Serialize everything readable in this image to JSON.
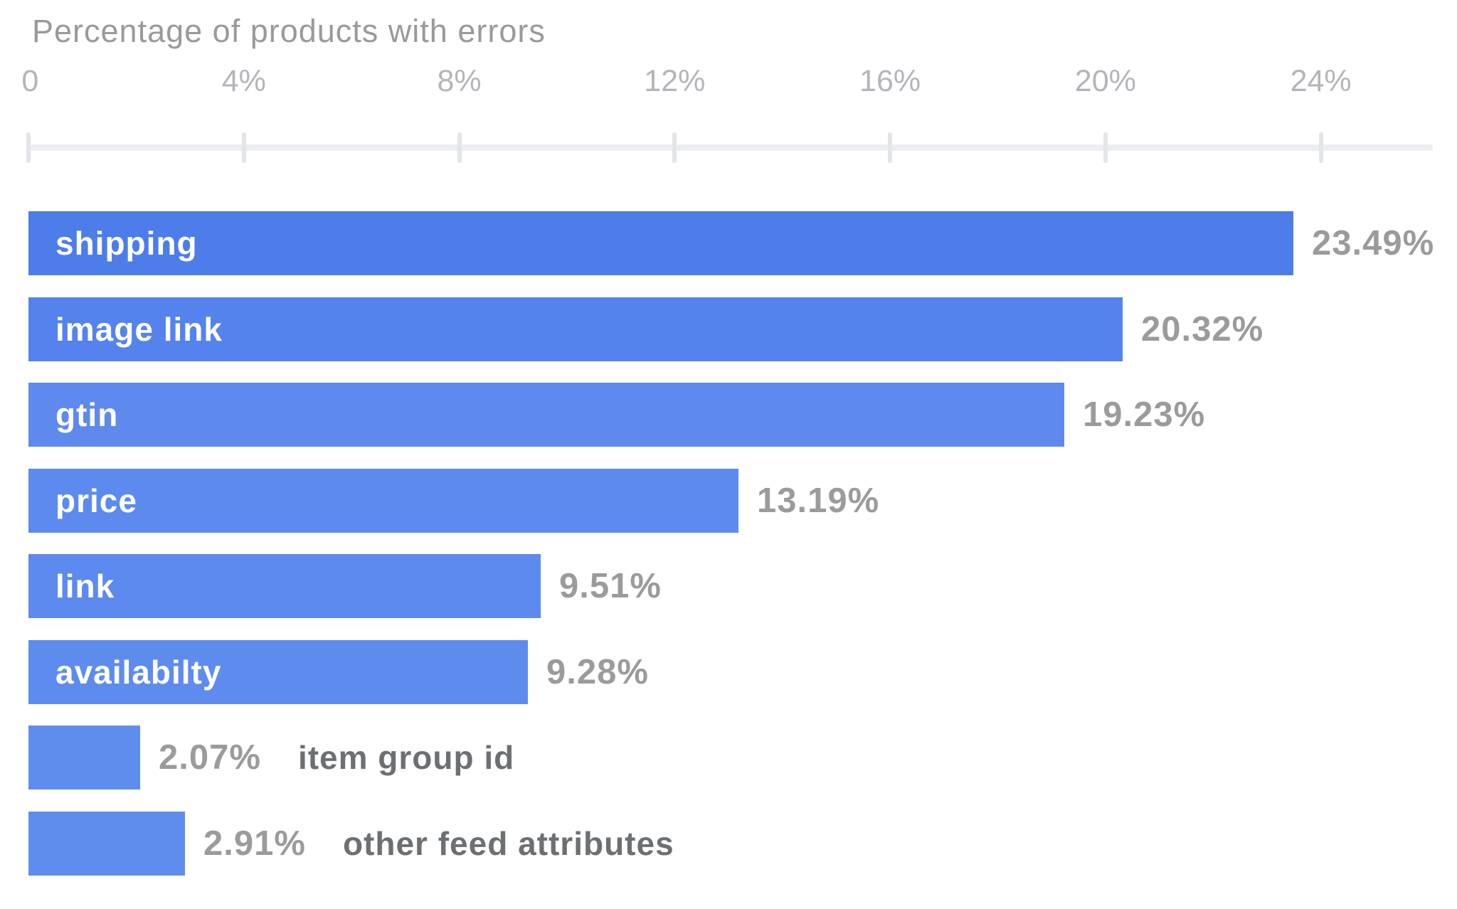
{
  "title": "Percentage of products with errors",
  "chart_data": {
    "type": "bar",
    "orientation": "horizontal",
    "title": "Percentage of products with errors",
    "categories": [
      "shipping",
      "image link",
      "gtin",
      "price",
      "link",
      "availabilty",
      "item group id",
      "other feed attributes"
    ],
    "values": [
      23.49,
      20.32,
      19.23,
      13.19,
      9.51,
      9.28,
      2.07,
      2.91
    ],
    "value_labels": [
      "23.49%",
      "20.32%",
      "19.23%",
      "13.19%",
      "9.51%",
      "9.28%",
      "2.07%",
      "2.91%"
    ],
    "category_label_position": [
      "inside",
      "inside",
      "inside",
      "inside",
      "inside",
      "inside",
      "outside",
      "outside"
    ],
    "bar_colors": [
      "#4c7de9",
      "#5583ed",
      "#5e8aee",
      "#5d8aee",
      "#5d8aee",
      "#5e8cee",
      "#5f8dee",
      "#5f8dee"
    ],
    "xlabel": "",
    "ylabel": "",
    "xlim": [
      0,
      26
    ],
    "x_ticks": [
      0,
      4,
      8,
      12,
      16,
      20,
      24
    ],
    "x_tick_labels": [
      "0",
      "4%",
      "8%",
      "12%",
      "16%",
      "20%",
      "24%"
    ],
    "grid": false,
    "legend": false,
    "colors": {
      "title_text": "#9a9a9a",
      "tick_text": "#b3b5ba",
      "axis_line": "#eceef2",
      "tick_mark": "#e3e5ea",
      "value_text": "#9b9b9b",
      "outside_category_text": "#6d7073",
      "inside_category_text": "#ffffff",
      "background": "#ffffff"
    }
  }
}
